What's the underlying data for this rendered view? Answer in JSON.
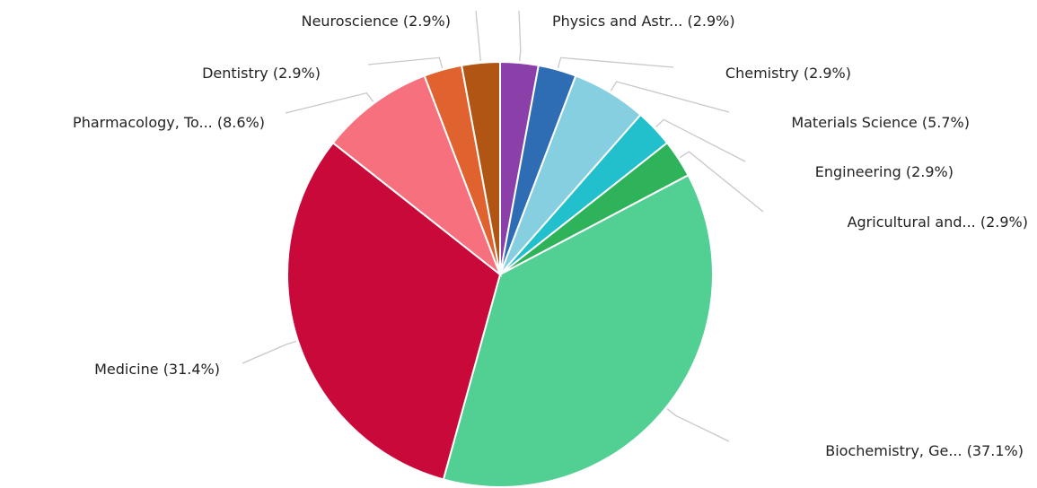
{
  "chart_data": {
    "type": "pie",
    "categories": [
      "Physics and Astr...",
      "Chemistry",
      "Materials Science",
      "Engineering",
      "Agricultural and...",
      "Biochemistry, Ge...",
      "Medicine",
      "Pharmacology, To...",
      "Dentistry",
      "Neuroscience"
    ],
    "values": [
      2.9,
      2.9,
      5.7,
      2.9,
      2.9,
      37.1,
      31.4,
      8.6,
      2.9,
      2.9
    ],
    "value_labels": [
      "(2.9%)",
      "(2.9%)",
      "(5.7%)",
      "(2.9%)",
      "(2.9%)",
      "(37.1%)",
      "(31.4%)",
      "(8.6%)",
      "(2.9%)",
      "(2.9%)"
    ],
    "colors": [
      "#8b3fa8",
      "#2e6db4",
      "#86cfe0",
      "#22bfcc",
      "#2eb35a",
      "#52cf93",
      "#c8093a",
      "#f7707e",
      "#e0622e",
      "#b05514"
    ]
  }
}
